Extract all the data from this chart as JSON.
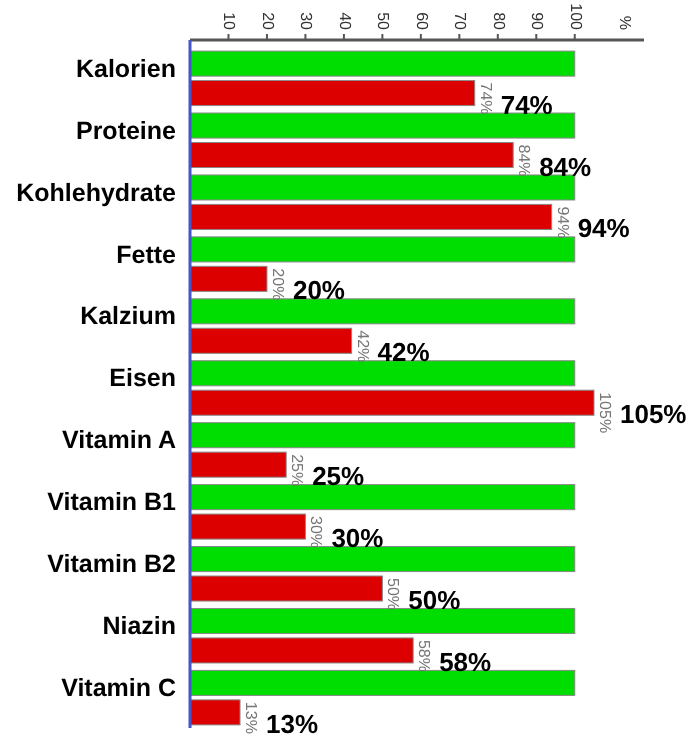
{
  "chart_data": {
    "type": "bar",
    "orientation": "horizontal",
    "x2label": "%",
    "categories": [
      "Kalorien",
      "Proteine",
      "Kohlehydrate",
      "Fette",
      "Kalzium",
      "Eisen",
      "Vitamin A",
      "Vitamin B1",
      "Vitamin B2",
      "Niazin",
      "Vitamin C"
    ],
    "series": [
      {
        "color": "#00dd00",
        "axis": "x2",
        "values": [
          100,
          100,
          100,
          100,
          100,
          100,
          100,
          100,
          100,
          100,
          100
        ]
      },
      {
        "color": "#dd0000",
        "axis": "x2",
        "values": [
          74,
          84,
          94,
          20,
          42,
          105,
          25,
          30,
          50,
          58,
          13
        ],
        "value_labels": [
          "74%",
          "84%",
          "94%",
          "20%",
          "42%",
          "105%",
          "25%",
          "30%",
          "50%",
          "58%",
          "13%"
        ]
      }
    ],
    "x2lim": [
      0,
      118
    ],
    "x2ticks": [
      10,
      20,
      30,
      40,
      50,
      60,
      70,
      80,
      90,
      100
    ],
    "tick_labels": "x2"
  }
}
